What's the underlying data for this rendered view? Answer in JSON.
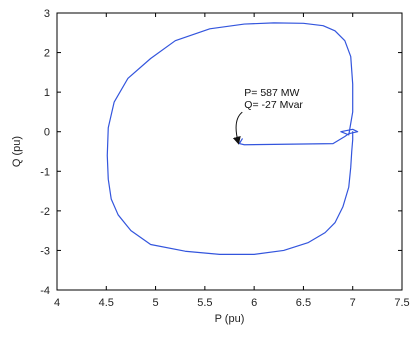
{
  "chart_data": {
    "type": "line",
    "xlabel": "P (pu)",
    "ylabel": "Q (pu)",
    "xlim": [
      4,
      7.5
    ],
    "ylim": [
      -4,
      3
    ],
    "x_ticks": [
      "4",
      "4.5",
      "5",
      "5.5",
      "6",
      "6.5",
      "7",
      "7.5"
    ],
    "y_ticks": [
      "-4",
      "-3",
      "-2",
      "-1",
      "0",
      "1",
      "2",
      "3"
    ],
    "grid": true,
    "line_color": "#3355dd",
    "series": [
      {
        "x": [
          5.88,
          5.85,
          5.9,
          6.2,
          6.5,
          6.8,
          6.92,
          6.96,
          7.05,
          7.0,
          6.88,
          6.96,
          7.0,
          7.0,
          6.98,
          6.92,
          6.82,
          6.7,
          6.5,
          6.2,
          5.9,
          5.55,
          5.2,
          4.95,
          4.72,
          4.58,
          4.52,
          4.51,
          4.52,
          4.55,
          4.62,
          4.75,
          4.95,
          5.3,
          5.65,
          6.0,
          6.3,
          6.55,
          6.72,
          6.82,
          6.9,
          6.96,
          6.98,
          6.99,
          7.0,
          7.0
        ],
        "y": [
          -0.18,
          -0.3,
          -0.33,
          -0.32,
          -0.31,
          -0.3,
          -0.12,
          -0.05,
          0.0,
          0.06,
          0.0,
          -0.08,
          0.5,
          1.2,
          1.9,
          2.3,
          2.55,
          2.68,
          2.74,
          2.75,
          2.72,
          2.6,
          2.3,
          1.85,
          1.35,
          0.75,
          0.1,
          -0.6,
          -1.2,
          -1.7,
          -2.1,
          -2.5,
          -2.85,
          -3.02,
          -3.1,
          -3.1,
          -3.0,
          -2.8,
          -2.55,
          -2.3,
          -1.9,
          -1.4,
          -0.9,
          -0.5,
          -0.2,
          0.0
        ]
      }
    ],
    "annotations": [
      {
        "lines": [
          "P= 587 MW",
          "Q= -27 Mvar"
        ],
        "x": 5.9,
        "y": 0.9,
        "arrow_to": [
          5.84,
          -0.28
        ]
      }
    ]
  }
}
